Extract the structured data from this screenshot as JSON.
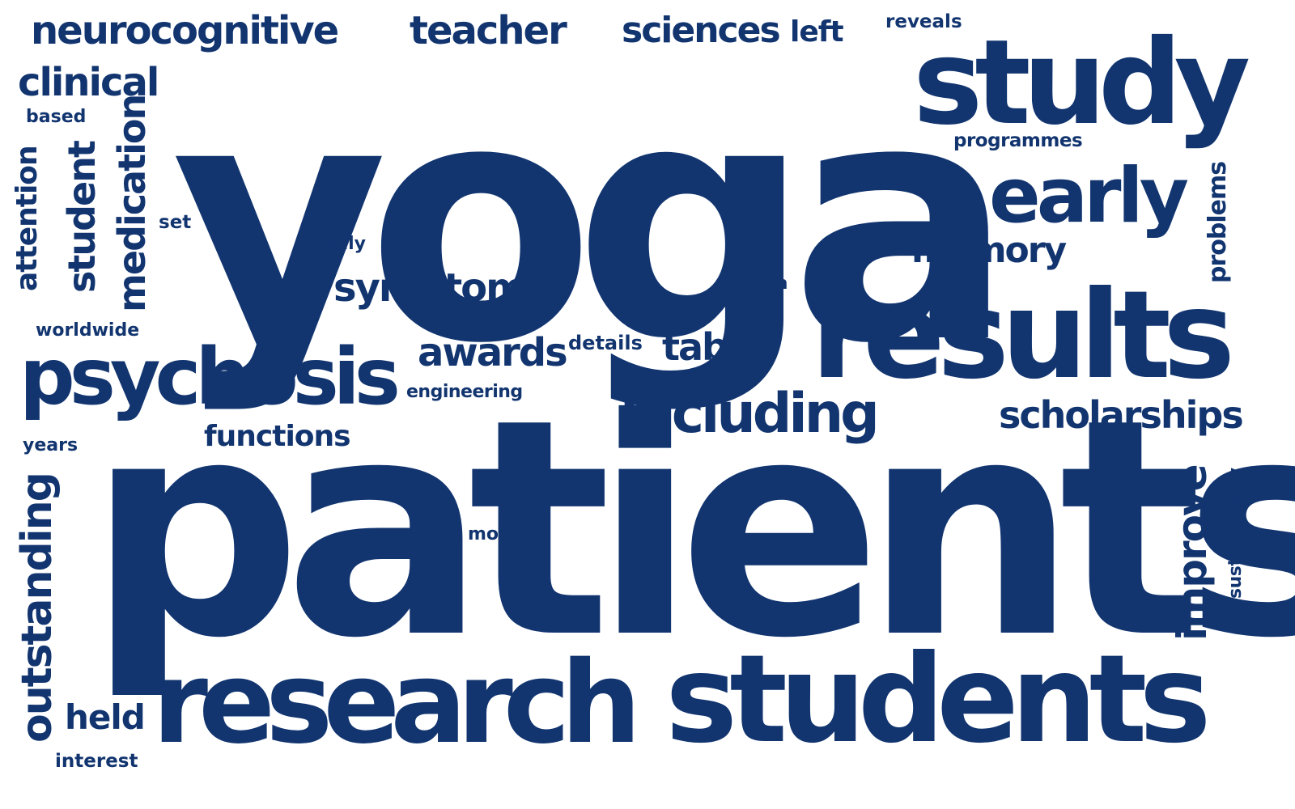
{
  "word_cloud": {
    "text_color": "#123570",
    "background_color": "#ffffff",
    "words": {
      "yoga": "yoga",
      "patients": "patients",
      "research": "research",
      "students": "students",
      "results": "results",
      "study": "study",
      "psychosis": "psychosis",
      "early": "early",
      "including": "including",
      "neurocognitive": "neurocognitive",
      "teacher": "teacher",
      "sciences": "sciences",
      "left": "left",
      "reveals": "reveals",
      "clinical": "clinical",
      "based": "based",
      "attention": "attention",
      "student": "student",
      "medication": "medication",
      "set": "set",
      "daily": "daily",
      "symptoms": "symptoms",
      "programmes": "programmes",
      "memory": "memory",
      "problems": "problems",
      "area": "area",
      "worldwide": "worldwide",
      "awards": "awards",
      "details": "details",
      "table": "table",
      "engineering": "engineering",
      "scholarships": "scholarships",
      "functions": "functions",
      "years": "years",
      "outstanding": "outstanding",
      "more": "more",
      "improve": "improve",
      "sustainability": "sustainability",
      "held": "held",
      "interest": "interest"
    }
  }
}
